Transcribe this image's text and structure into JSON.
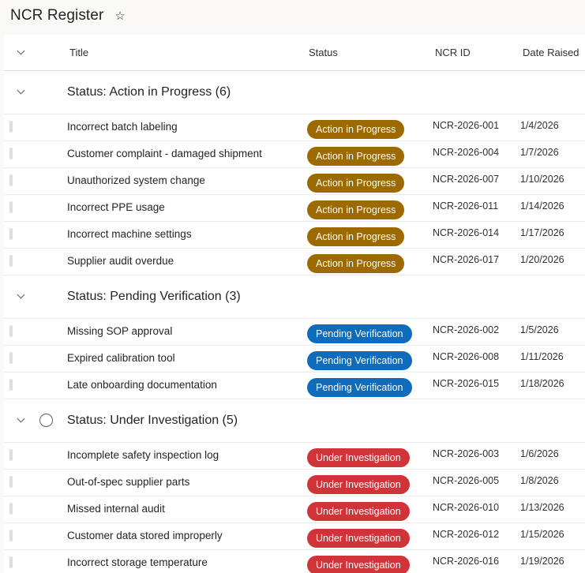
{
  "header": {
    "title": "NCR Register",
    "star_glyph": "☆"
  },
  "columns": {
    "title": "Title",
    "status": "Status",
    "id": "NCR ID",
    "date": "Date Raised"
  },
  "colors": {
    "Action in Progress": "#9c6a00",
    "Pending Verification": "#0f6cbd",
    "Under Investigation": "#d13438"
  },
  "groups": [
    {
      "label": "Status: Action in Progress (6)",
      "status": "Action in Progress",
      "rows": [
        {
          "title": "Incorrect batch labeling",
          "status": "Action in Progress",
          "id": "NCR-2026-001",
          "date": "1/4/2026"
        },
        {
          "title": "Customer complaint - damaged shipment",
          "status": "Action in Progress",
          "id": "NCR-2026-004",
          "date": "1/7/2026"
        },
        {
          "title": "Unauthorized system change",
          "status": "Action in Progress",
          "id": "NCR-2026-007",
          "date": "1/10/2026"
        },
        {
          "title": "Incorrect PPE usage",
          "status": "Action in Progress",
          "id": "NCR-2026-011",
          "date": "1/14/2026"
        },
        {
          "title": "Incorrect machine settings",
          "status": "Action in Progress",
          "id": "NCR-2026-014",
          "date": "1/17/2026"
        },
        {
          "title": "Supplier audit overdue",
          "status": "Action in Progress",
          "id": "NCR-2026-017",
          "date": "1/20/2026"
        }
      ]
    },
    {
      "label": "Status: Pending Verification (3)",
      "status": "Pending Verification",
      "rows": [
        {
          "title": "Missing SOP approval",
          "status": "Pending Verification",
          "id": "NCR-2026-002",
          "date": "1/5/2026"
        },
        {
          "title": "Expired calibration tool",
          "status": "Pending Verification",
          "id": "NCR-2026-008",
          "date": "1/11/2026"
        },
        {
          "title": "Late onboarding documentation",
          "status": "Pending Verification",
          "id": "NCR-2026-015",
          "date": "1/18/2026"
        }
      ]
    },
    {
      "label": "Status: Under Investigation (5)",
      "status": "Under Investigation",
      "show_circle": true,
      "rows": [
        {
          "title": "Incomplete safety inspection log",
          "status": "Under Investigation",
          "id": "NCR-2026-003",
          "date": "1/6/2026"
        },
        {
          "title": "Out-of-spec supplier parts",
          "status": "Under Investigation",
          "id": "NCR-2026-005",
          "date": "1/8/2026"
        },
        {
          "title": "Missed internal audit",
          "status": "Under Investigation",
          "id": "NCR-2026-010",
          "date": "1/13/2026"
        },
        {
          "title": "Customer data stored improperly",
          "status": "Under Investigation",
          "id": "NCR-2026-012",
          "date": "1/15/2026"
        },
        {
          "title": "Incorrect storage temperature",
          "status": "Under Investigation",
          "id": "NCR-2026-016",
          "date": "1/19/2026"
        }
      ]
    }
  ]
}
